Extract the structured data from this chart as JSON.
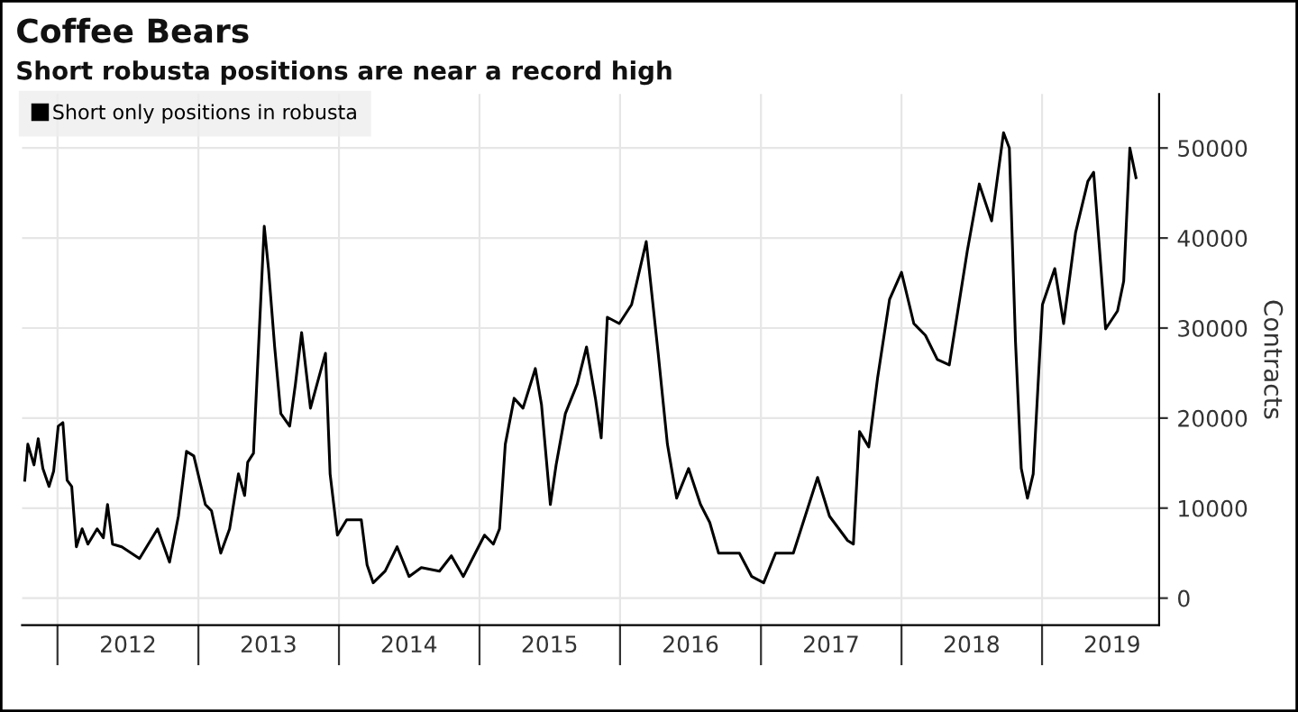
{
  "chart_data": {
    "type": "line",
    "title": "Coffee Bears",
    "subtitle": "Short robusta positions are near a record high",
    "ylabel": "Contracts",
    "x": [
      "2011-10-08",
      "2011-10-16",
      "2011-11-01",
      "2011-11-12",
      "2011-11-24",
      "2011-12-10",
      "2011-12-22",
      "2012-01-03",
      "2012-01-15",
      "2012-01-26",
      "2012-02-07",
      "2012-02-19",
      "2012-03-05",
      "2012-03-20",
      "2012-04-13",
      "2012-04-29",
      "2012-05-10",
      "2012-05-23",
      "2012-06-16",
      "2012-08-01",
      "2012-09-17",
      "2012-10-18",
      "2012-11-10",
      "2012-12-01",
      "2012-12-20",
      "2013-01-19",
      "2013-02-04",
      "2013-02-28",
      "2013-03-23",
      "2013-04-15",
      "2013-05-01",
      "2013-05-09",
      "2013-05-24",
      "2013-06-21",
      "2013-07-02",
      "2013-07-18",
      "2013-08-03",
      "2013-08-26",
      "2013-09-10",
      "2013-09-26",
      "2013-10-19",
      "2013-11-27",
      "2013-12-09",
      "2013-12-28",
      "2014-01-21",
      "2014-02-28",
      "2014-03-15",
      "2014-03-31",
      "2014-05-01",
      "2014-06-01",
      "2014-07-02",
      "2014-08-03",
      "2014-09-19",
      "2014-10-20",
      "2014-11-20",
      "2014-12-21",
      "2015-01-14",
      "2015-02-06",
      "2015-02-22",
      "2015-03-09",
      "2015-04-01",
      "2015-04-24",
      "2015-05-26",
      "2015-06-11",
      "2015-07-04",
      "2015-07-19",
      "2015-08-12",
      "2015-09-12",
      "2015-10-06",
      "2015-10-29",
      "2015-11-13",
      "2015-11-29",
      "2015-12-30",
      "2016-01-31",
      "2016-03-09",
      "2016-04-09",
      "2016-05-03",
      "2016-05-27",
      "2016-06-27",
      "2016-07-28",
      "2016-08-21",
      "2016-09-13",
      "2016-11-06",
      "2016-12-08",
      "2017-01-08",
      "2017-02-08",
      "2017-03-26",
      "2017-05-28",
      "2017-06-28",
      "2017-08-14",
      "2017-08-29",
      "2017-09-14",
      "2017-10-08",
      "2017-10-31",
      "2017-12-01",
      "2018-01-01",
      "2018-02-02",
      "2018-03-04",
      "2018-04-04",
      "2018-05-05",
      "2018-06-21",
      "2018-07-22",
      "2018-08-23",
      "2018-09-23",
      "2018-10-08",
      "2018-10-24",
      "2018-11-08",
      "2018-11-24",
      "2018-12-09",
      "2019-01-02",
      "2019-02-03",
      "2019-02-26",
      "2019-03-29",
      "2019-04-30",
      "2019-05-15",
      "2019-06-15",
      "2019-07-16",
      "2019-08-01",
      "2019-08-17",
      "2019-09-02"
    ],
    "series": [
      {
        "name": "Short only positions in robusta",
        "color": "#000000",
        "values": [
          13100,
          17100,
          14800,
          17700,
          14400,
          12400,
          14100,
          19100,
          19500,
          13100,
          12400,
          5700,
          7700,
          6000,
          7700,
          6700,
          10400,
          6000,
          5700,
          4400,
          7700,
          4000,
          9100,
          16300,
          15800,
          10400,
          9700,
          5000,
          7700,
          13800,
          11400,
          15100,
          16100,
          41300,
          36600,
          27900,
          20500,
          19100,
          23800,
          29500,
          21100,
          27200,
          13800,
          7000,
          8700,
          8700,
          3700,
          1700,
          3000,
          5700,
          2400,
          3400,
          3000,
          4700,
          2400,
          5000,
          7000,
          6000,
          7700,
          17100,
          22200,
          21100,
          25500,
          21500,
          10400,
          14800,
          20500,
          23800,
          27900,
          22200,
          17800,
          31200,
          30500,
          32600,
          39600,
          27200,
          17100,
          11100,
          14400,
          10400,
          8400,
          5000,
          5000,
          2400,
          1700,
          5000,
          5000,
          13400,
          9100,
          6400,
          6000,
          18500,
          16800,
          24500,
          33200,
          36200,
          30500,
          29200,
          26500,
          25900,
          38600,
          46000,
          41900,
          51700,
          50000,
          28500,
          14400,
          11100,
          13800,
          32600,
          36600,
          30500,
          40600,
          46300,
          47300,
          29900,
          31900,
          35200,
          50000,
          46700
        ]
      }
    ],
    "xlim": [
      "2011-10-01",
      "2019-11-01"
    ],
    "xticks": [
      {
        "value": "2012-01-01",
        "label": null
      },
      {
        "value": "2012-07-02",
        "label": "2012"
      },
      {
        "value": "2013-01-01",
        "label": null
      },
      {
        "value": "2013-07-02",
        "label": "2013"
      },
      {
        "value": "2014-01-01",
        "label": null
      },
      {
        "value": "2014-07-02",
        "label": "2014"
      },
      {
        "value": "2015-01-01",
        "label": null
      },
      {
        "value": "2015-07-02",
        "label": "2015"
      },
      {
        "value": "2016-01-01",
        "label": null
      },
      {
        "value": "2016-07-02",
        "label": "2016"
      },
      {
        "value": "2017-01-01",
        "label": null
      },
      {
        "value": "2017-07-02",
        "label": "2017"
      },
      {
        "value": "2018-01-01",
        "label": null
      },
      {
        "value": "2018-07-02",
        "label": "2018"
      },
      {
        "value": "2019-01-01",
        "label": null
      },
      {
        "value": "2019-07-02",
        "label": "2019"
      }
    ],
    "ylim": [
      -3000,
      56000
    ],
    "yticks": [
      0,
      10000,
      20000,
      30000,
      40000,
      50000
    ],
    "grid": true,
    "legend": "top left",
    "marker": "none",
    "line_style": "solid"
  }
}
